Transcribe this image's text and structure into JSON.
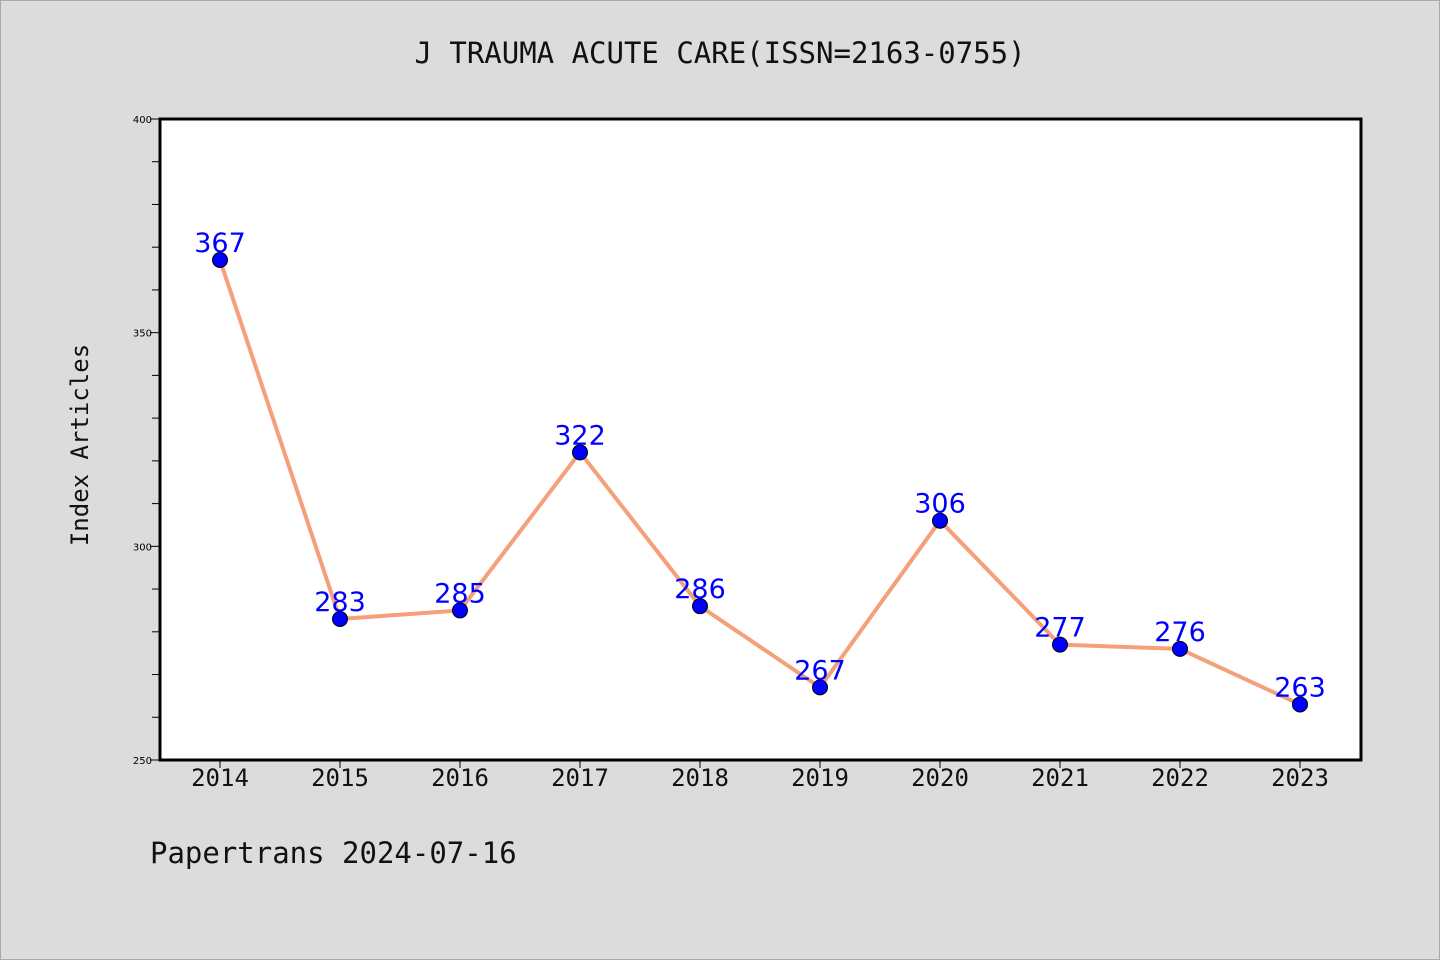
{
  "chart_data": {
    "type": "line",
    "title": "J TRAUMA ACUTE CARE(ISSN=2163-0755)",
    "xlabel": "",
    "ylabel": "Index Articles",
    "categories": [
      "2014",
      "2015",
      "2016",
      "2017",
      "2018",
      "2019",
      "2020",
      "2021",
      "2022",
      "2023"
    ],
    "series": [
      {
        "values": [
          367,
          283,
          285,
          322,
          286,
          267,
          306,
          277,
          276,
          263
        ]
      }
    ],
    "ylim": [
      250,
      400
    ],
    "yticks": [
      250,
      300,
      350,
      400
    ],
    "grid": false,
    "line_color": "#f4a07a",
    "marker_color": "#0000ff",
    "label_color": "#0000ff"
  },
  "footer": {
    "note": "Papertrans 2024-07-16"
  }
}
